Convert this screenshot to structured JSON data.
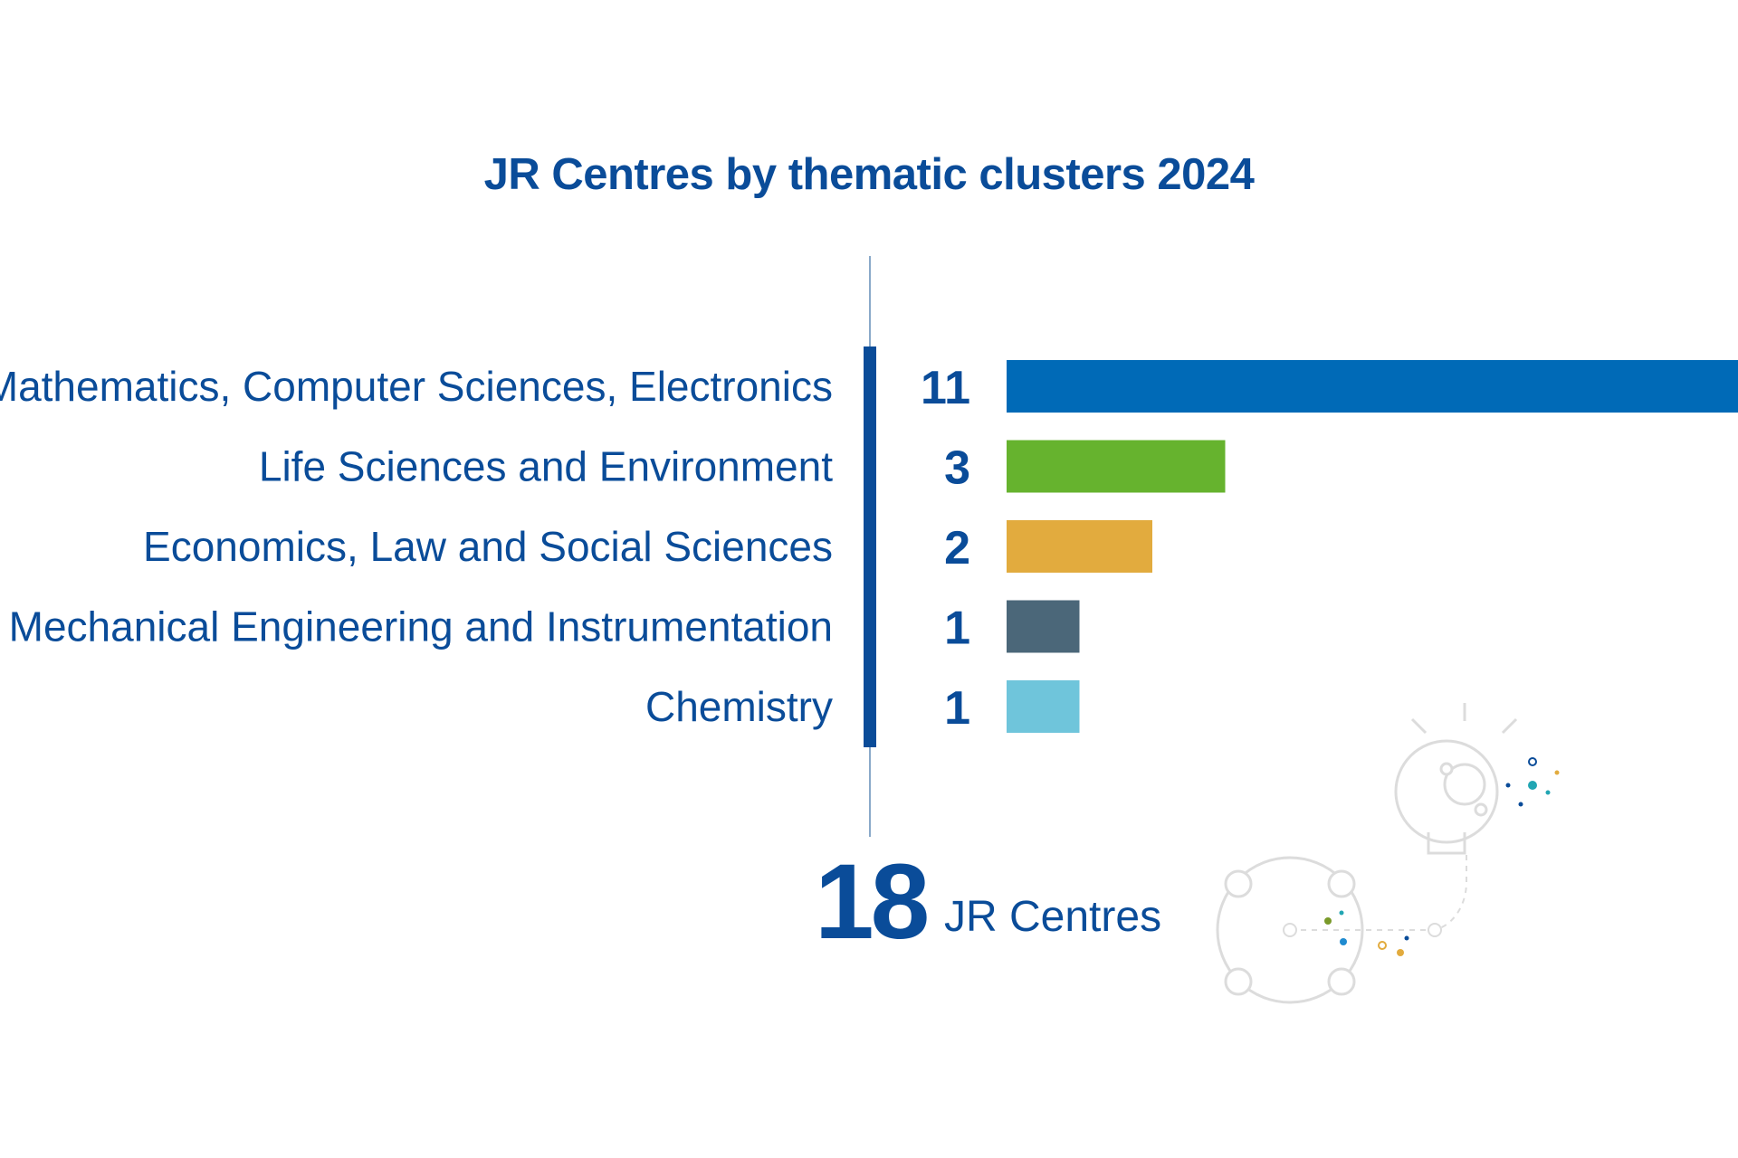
{
  "chart_data": {
    "type": "bar",
    "orientation": "horizontal",
    "title": "JR Centres by thematic clusters 2024",
    "categories": [
      "Mathematics, Computer Sciences, Electronics",
      "Life Sciences and Environment",
      "Economics, Law and Social Sciences",
      "Mechanical Engineering and Instrumentation",
      "Chemistry"
    ],
    "values": [
      11,
      3,
      2,
      1,
      1
    ],
    "colors": [
      "#006ab7",
      "#66b32e",
      "#e2ab3e",
      "#4b6779",
      "#6fc5db"
    ],
    "xlim": [
      0,
      11
    ],
    "grid": false,
    "legend": "none"
  },
  "total": {
    "value": "18",
    "label": "JR Centres"
  },
  "decoration": {
    "icon": "lightbulb-network-illustration"
  }
}
